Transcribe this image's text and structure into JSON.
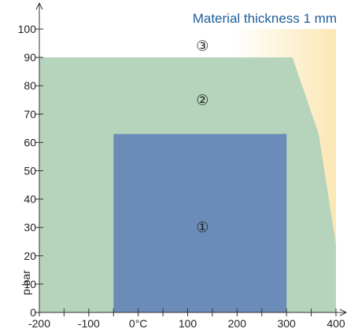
{
  "chart_data": {
    "type": "area",
    "title": "Material thickness 1 mm",
    "ylabel": "p bar",
    "xlabel": "",
    "x_range": [
      -200,
      400
    ],
    "y_range": [
      0,
      100
    ],
    "x_ticks": [
      -200,
      -150,
      -100,
      -50,
      0,
      50,
      100,
      150,
      200,
      250,
      300,
      350,
      400
    ],
    "x_tick_labels": [
      "-200",
      "-100",
      "0°C",
      "100",
      "200",
      "300",
      "400"
    ],
    "x_tick_label_values": [
      -200,
      -100,
      0,
      100,
      200,
      300,
      400
    ],
    "y_ticks": [
      0,
      10,
      20,
      30,
      40,
      50,
      60,
      70,
      80,
      90,
      100
    ],
    "y_tick_labels": [
      "0",
      "10",
      "20",
      "30",
      "40",
      "50",
      "60",
      "70",
      "80",
      "90",
      "100"
    ],
    "grid": false,
    "regions": [
      {
        "id": "3",
        "label": "③",
        "label_pos": {
          "x": 130,
          "y": 94
        },
        "fill": "#fbe7b5",
        "fill_end": "#ffffff",
        "points": [
          [
            -200,
            0
          ],
          [
            -200,
            100
          ],
          [
            400,
            100
          ],
          [
            400,
            0
          ]
        ]
      },
      {
        "id": "2",
        "label": "②",
        "label_pos": {
          "x": 130,
          "y": 75
        },
        "fill": "#b5d4bb",
        "points": [
          [
            -200,
            0
          ],
          [
            -200,
            90
          ],
          [
            312,
            90
          ],
          [
            365,
            63
          ],
          [
            400,
            24
          ],
          [
            400,
            0
          ]
        ]
      },
      {
        "id": "1",
        "label": "①",
        "label_pos": {
          "x": 130,
          "y": 30
        },
        "fill": "#6b8cb8",
        "points": [
          [
            -50,
            0
          ],
          [
            -50,
            63
          ],
          [
            300,
            63
          ],
          [
            300,
            0
          ]
        ]
      }
    ]
  }
}
